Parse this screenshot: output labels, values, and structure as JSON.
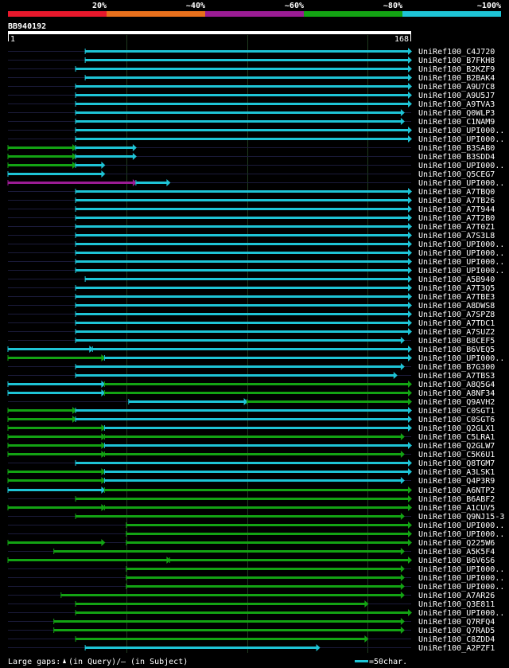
{
  "query": {
    "name": "BB940192",
    "start_label": "1",
    "end_label": "168",
    "length": 168
  },
  "identity_legend": {
    "items": [
      {
        "label": "20%",
        "color": "#e8182c"
      },
      {
        "label": "~40%",
        "color": "#e8701c"
      },
      {
        "label": "~60%",
        "color": "#9b1c94"
      },
      {
        "label": "~80%",
        "color": "#13a313"
      },
      {
        "label": "~100%",
        "color": "#1ec4d6"
      }
    ]
  },
  "colors": {
    "background": "#000000",
    "text": "#ffffff",
    "query_ruler": "#ffffff",
    "guide_line": "#1b1b3a",
    "grid_line": "#1f3a1f",
    "gap_marker": "#ffffff",
    "cyan": "#1ec4d6",
    "green": "#13a313",
    "purple": "#9b1c94"
  },
  "footer": {
    "gaps_prefix": "Large gaps:",
    "gaps_query": "(in Query)/",
    "gaps_dash": "–",
    "gaps_subject": "(in Subject)",
    "scale_label": "=50char."
  },
  "chart_data": {
    "type": "alignment-overview",
    "query_length": 168,
    "hits": [
      {
        "label": "UniRef100_C4J720",
        "segments": [
          {
            "start": 33,
            "end": 168,
            "color": "cyan"
          }
        ]
      },
      {
        "label": "UniRef100_B7FKH8",
        "segments": [
          {
            "start": 33,
            "end": 168,
            "color": "cyan"
          }
        ]
      },
      {
        "label": "UniRef100_B2KZF9",
        "segments": [
          {
            "start": 29,
            "end": 168,
            "color": "cyan"
          }
        ]
      },
      {
        "label": "UniRef100_B2BAK4",
        "segments": [
          {
            "start": 33,
            "end": 168,
            "color": "cyan"
          }
        ]
      },
      {
        "label": "UniRef100_A9U7C8",
        "segments": [
          {
            "start": 29,
            "end": 168,
            "color": "cyan"
          }
        ]
      },
      {
        "label": "UniRef100_A9U5J7",
        "segments": [
          {
            "start": 29,
            "end": 168,
            "color": "cyan"
          }
        ]
      },
      {
        "label": "UniRef100_A9TVA3",
        "segments": [
          {
            "start": 29,
            "end": 168,
            "color": "cyan"
          }
        ]
      },
      {
        "label": "UniRef100_Q0WLP3",
        "segments": [
          {
            "start": 29,
            "end": 165,
            "color": "cyan"
          }
        ]
      },
      {
        "label": "UniRef100_C1NAM9",
        "segments": [
          {
            "start": 29,
            "end": 165,
            "color": "cyan"
          }
        ]
      },
      {
        "label": "UniRef100_UPI000..",
        "segments": [
          {
            "start": 29,
            "end": 168,
            "color": "cyan"
          }
        ]
      },
      {
        "label": "UniRef100_UPI000..",
        "segments": [
          {
            "start": 29,
            "end": 168,
            "color": "cyan"
          }
        ]
      },
      {
        "label": "UniRef100_B3SAB0",
        "segments": [
          {
            "start": 1,
            "end": 29,
            "color": "green"
          },
          {
            "start": 29,
            "end": 54,
            "color": "cyan"
          }
        ]
      },
      {
        "label": "UniRef100_B3SDD4",
        "segments": [
          {
            "start": 1,
            "end": 29,
            "color": "green"
          },
          {
            "start": 29,
            "end": 54,
            "color": "cyan"
          }
        ]
      },
      {
        "label": "UniRef100_UPI000..",
        "segments": [
          {
            "start": 1,
            "end": 29,
            "color": "green"
          },
          {
            "start": 29,
            "end": 41,
            "color": "cyan"
          }
        ]
      },
      {
        "label": "UniRef100_Q5CEG7",
        "segments": [
          {
            "start": 1,
            "end": 41,
            "color": "cyan"
          }
        ]
      },
      {
        "label": "UniRef100_UPI000..",
        "segments": [
          {
            "start": 1,
            "end": 54,
            "color": "purple"
          },
          {
            "start": 54,
            "end": 68,
            "color": "cyan"
          }
        ]
      },
      {
        "label": "UniRef100_A7TBQ0",
        "segments": [
          {
            "start": 29,
            "end": 168,
            "color": "cyan"
          }
        ]
      },
      {
        "label": "UniRef100_A7TB26",
        "segments": [
          {
            "start": 29,
            "end": 168,
            "color": "cyan"
          }
        ]
      },
      {
        "label": "UniRef100_A7T944",
        "segments": [
          {
            "start": 29,
            "end": 168,
            "color": "cyan"
          }
        ]
      },
      {
        "label": "UniRef100_A7T2B0",
        "segments": [
          {
            "start": 29,
            "end": 168,
            "color": "cyan"
          }
        ]
      },
      {
        "label": "UniRef100_A7T0Z1",
        "segments": [
          {
            "start": 29,
            "end": 168,
            "color": "cyan"
          }
        ]
      },
      {
        "label": "UniRef100_A7S3L8",
        "segments": [
          {
            "start": 29,
            "end": 168,
            "color": "cyan"
          }
        ]
      },
      {
        "label": "UniRef100_UPI000..",
        "segments": [
          {
            "start": 29,
            "end": 168,
            "color": "cyan"
          }
        ]
      },
      {
        "label": "UniRef100_UPI000..",
        "segments": [
          {
            "start": 29,
            "end": 168,
            "color": "cyan"
          }
        ]
      },
      {
        "label": "UniRef100_UPI000..",
        "segments": [
          {
            "start": 29,
            "end": 168,
            "color": "cyan"
          }
        ]
      },
      {
        "label": "UniRef100_UPI000..",
        "segments": [
          {
            "start": 29,
            "end": 168,
            "color": "cyan"
          }
        ]
      },
      {
        "label": "UniRef100_A5B940",
        "segments": [
          {
            "start": 33,
            "end": 168,
            "color": "cyan"
          }
        ]
      },
      {
        "label": "UniRef100_A7T3Q5",
        "segments": [
          {
            "start": 29,
            "end": 168,
            "color": "cyan"
          }
        ]
      },
      {
        "label": "UniRef100_A7TBE3",
        "segments": [
          {
            "start": 29,
            "end": 168,
            "color": "cyan"
          }
        ]
      },
      {
        "label": "UniRef100_A8DWS8",
        "segments": [
          {
            "start": 29,
            "end": 168,
            "color": "cyan"
          }
        ]
      },
      {
        "label": "UniRef100_A7SPZ8",
        "segments": [
          {
            "start": 29,
            "end": 168,
            "color": "cyan"
          }
        ]
      },
      {
        "label": "UniRef100_A7TDC1",
        "segments": [
          {
            "start": 29,
            "end": 168,
            "color": "cyan"
          }
        ]
      },
      {
        "label": "UniRef100_A7SUZ2",
        "segments": [
          {
            "start": 29,
            "end": 168,
            "color": "cyan"
          }
        ]
      },
      {
        "label": "UniRef100_B8CEF5",
        "segments": [
          {
            "start": 29,
            "end": 165,
            "color": "cyan"
          }
        ]
      },
      {
        "label": "UniRef100_B6VEQ5",
        "segments": [
          {
            "start": 1,
            "end": 36,
            "color": "cyan"
          },
          {
            "start": 36,
            "end": 168,
            "color": "cyan"
          }
        ]
      },
      {
        "label": "UniRef100_UPI000..",
        "segments": [
          {
            "start": 1,
            "end": 41,
            "color": "green"
          },
          {
            "start": 41,
            "end": 168,
            "color": "cyan"
          }
        ]
      },
      {
        "label": "UniRef100_B7G300",
        "segments": [
          {
            "start": 29,
            "end": 165,
            "color": "cyan"
          }
        ]
      },
      {
        "label": "UniRef100_A7TBS3",
        "segments": [
          {
            "start": 29,
            "end": 162,
            "color": "cyan"
          }
        ]
      },
      {
        "label": "UniRef100_A8Q5G4",
        "segments": [
          {
            "start": 1,
            "end": 41,
            "color": "cyan"
          },
          {
            "start": 41,
            "end": 168,
            "color": "green"
          }
        ]
      },
      {
        "label": "UniRef100_A8NF34",
        "segments": [
          {
            "start": 1,
            "end": 41,
            "color": "cyan"
          },
          {
            "start": 41,
            "end": 168,
            "color": "green"
          }
        ]
      },
      {
        "label": "UniRef100_Q9AVH2",
        "segments": [
          {
            "start": 51,
            "end": 100,
            "color": "cyan"
          },
          {
            "start": 100,
            "end": 168,
            "color": "green"
          }
        ]
      },
      {
        "label": "UniRef100_C0SGT1",
        "segments": [
          {
            "start": 1,
            "end": 29,
            "color": "green"
          },
          {
            "start": 29,
            "end": 168,
            "color": "cyan"
          }
        ]
      },
      {
        "label": "UniRef100_C0SGT6",
        "segments": [
          {
            "start": 1,
            "end": 29,
            "color": "green"
          },
          {
            "start": 29,
            "end": 168,
            "color": "cyan"
          }
        ]
      },
      {
        "label": "UniRef100_Q2GLX1",
        "segments": [
          {
            "start": 1,
            "end": 41,
            "color": "green"
          },
          {
            "start": 41,
            "end": 168,
            "color": "cyan"
          }
        ]
      },
      {
        "label": "UniRef100_C5LRA1",
        "segments": [
          {
            "start": 1,
            "end": 41,
            "color": "green"
          },
          {
            "start": 41,
            "end": 165,
            "color": "green"
          }
        ]
      },
      {
        "label": "UniRef100_Q2GLW7",
        "segments": [
          {
            "start": 1,
            "end": 41,
            "color": "green"
          },
          {
            "start": 41,
            "end": 168,
            "color": "cyan"
          }
        ]
      },
      {
        "label": "UniRef100_C5K6U1",
        "segments": [
          {
            "start": 1,
            "end": 41,
            "color": "green"
          },
          {
            "start": 41,
            "end": 165,
            "color": "green"
          }
        ]
      },
      {
        "label": "UniRef100_Q8TGM7",
        "segments": [
          {
            "start": 29,
            "end": 168,
            "color": "cyan"
          }
        ]
      },
      {
        "label": "UniRef100_A3LSK1",
        "segments": [
          {
            "start": 1,
            "end": 41,
            "color": "green"
          },
          {
            "start": 41,
            "end": 168,
            "color": "cyan"
          }
        ]
      },
      {
        "label": "UniRef100_Q4P3R9",
        "segments": [
          {
            "start": 1,
            "end": 41,
            "color": "green"
          },
          {
            "start": 41,
            "end": 165,
            "color": "cyan"
          }
        ]
      },
      {
        "label": "UniRef100_A6NTP2",
        "segments": [
          {
            "start": 1,
            "end": 41,
            "color": "cyan"
          },
          {
            "start": 41,
            "end": 168,
            "color": "green"
          }
        ]
      },
      {
        "label": "UniRef100_B6ABF2",
        "segments": [
          {
            "start": 29,
            "end": 168,
            "color": "green"
          }
        ]
      },
      {
        "label": "UniRef100_A1CUV5",
        "segments": [
          {
            "start": 1,
            "end": 41,
            "color": "green"
          },
          {
            "start": 41,
            "end": 168,
            "color": "green"
          }
        ]
      },
      {
        "label": "UniRef100_Q9NJ15-3",
        "segments": [
          {
            "start": 29,
            "end": 165,
            "color": "green"
          }
        ]
      },
      {
        "label": "UniRef100_UPI000..",
        "segments": [
          {
            "start": 50,
            "end": 168,
            "color": "green"
          }
        ]
      },
      {
        "label": "UniRef100_UPI000..",
        "segments": [
          {
            "start": 50,
            "end": 168,
            "color": "green"
          }
        ]
      },
      {
        "label": "UniRef100_Q225W6",
        "segments": [
          {
            "start": 1,
            "end": 41,
            "color": "green"
          },
          {
            "start": 50,
            "end": 168,
            "color": "green"
          }
        ]
      },
      {
        "label": "UniRef100_A5K5F4",
        "segments": [
          {
            "start": 20,
            "end": 165,
            "color": "green"
          }
        ]
      },
      {
        "label": "UniRef100_B6V6S6",
        "segments": [
          {
            "start": 1,
            "end": 68,
            "color": "green"
          },
          {
            "start": 68,
            "end": 168,
            "color": "green"
          }
        ]
      },
      {
        "label": "UniRef100_UPI000..",
        "segments": [
          {
            "start": 50,
            "end": 165,
            "color": "green"
          }
        ]
      },
      {
        "label": "UniRef100_UPI000..",
        "segments": [
          {
            "start": 50,
            "end": 165,
            "color": "green"
          }
        ]
      },
      {
        "label": "UniRef100_UPI000..",
        "segments": [
          {
            "start": 50,
            "end": 165,
            "color": "green"
          }
        ]
      },
      {
        "label": "UniRef100_A7AR26",
        "segments": [
          {
            "start": 23,
            "end": 165,
            "color": "green"
          }
        ]
      },
      {
        "label": "UniRef100_Q3E811",
        "segments": [
          {
            "start": 29,
            "end": 150,
            "color": "green"
          }
        ]
      },
      {
        "label": "UniRef100_UPI000..",
        "segments": [
          {
            "start": 29,
            "end": 168,
            "color": "green"
          }
        ]
      },
      {
        "label": "UniRef100_Q7RFQ4",
        "segments": [
          {
            "start": 20,
            "end": 165,
            "color": "green"
          }
        ]
      },
      {
        "label": "UniRef100_Q7RAD5",
        "segments": [
          {
            "start": 20,
            "end": 165,
            "color": "green"
          }
        ]
      },
      {
        "label": "UniRef100_C8ZDD4",
        "segments": [
          {
            "start": 29,
            "end": 150,
            "color": "green"
          }
        ]
      },
      {
        "label": "UniRef100_A2PZF1",
        "segments": [
          {
            "start": 33,
            "end": 130,
            "color": "cyan"
          }
        ]
      }
    ]
  }
}
